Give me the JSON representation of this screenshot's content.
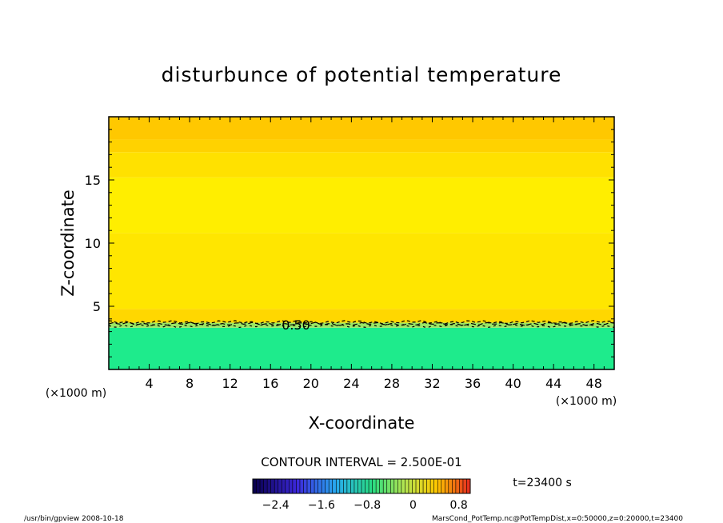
{
  "chart_data": {
    "type": "heatmap",
    "title": "disturbunce of potential temperature",
    "xlabel": "X-coordinate",
    "ylabel": "Z-coordinate",
    "x_unit_note": "(×1000 m)",
    "y_unit_note": "(×1000 m)",
    "xlim": [
      0,
      50
    ],
    "ylim": [
      0,
      20
    ],
    "x_ticks": [
      "4",
      "8",
      "12",
      "16",
      "20",
      "24",
      "28",
      "32",
      "36",
      "40",
      "44",
      "48"
    ],
    "y_ticks": [
      "5",
      "10",
      "15"
    ],
    "bands": [
      {
        "z_from": 0.0,
        "z_to": 3.3,
        "value": -0.9,
        "color": "#1eeb8c"
      },
      {
        "z_from": 3.3,
        "z_to": 3.7,
        "value": -0.5,
        "color": "#9be664"
      },
      {
        "z_from": 3.7,
        "z_to": 4.8,
        "value": 0.6,
        "color": "#ffd700"
      },
      {
        "z_from": 4.8,
        "z_to": 10.8,
        "value": 0.7,
        "color": "#ffe600"
      },
      {
        "z_from": 10.8,
        "z_to": 15.2,
        "value": 0.8,
        "color": "#ffee00"
      },
      {
        "z_from": 15.2,
        "z_to": 17.2,
        "value": 0.7,
        "color": "#ffe100"
      },
      {
        "z_from": 17.2,
        "z_to": 18.2,
        "value": 0.6,
        "color": "#ffd200"
      },
      {
        "z_from": 18.2,
        "z_to": 20.0,
        "value": 0.55,
        "color": "#ffc800"
      }
    ],
    "contour_label": "0.50",
    "contour_interval": "CONTOUR INTERVAL = 2.500E-01",
    "time_label": "t=23400 s",
    "colorbar": {
      "ticks": [
        "-2.4",
        "-1.6",
        "-0.8",
        "0",
        "0.8"
      ],
      "range": [
        -2.8,
        1.0
      ]
    }
  },
  "footer": {
    "left": "/usr/bin/gpview  2008-10-18",
    "right": "MarsCond_PotTemp.nc@PotTempDist,x=0:50000,z=0:20000,t=23400"
  }
}
